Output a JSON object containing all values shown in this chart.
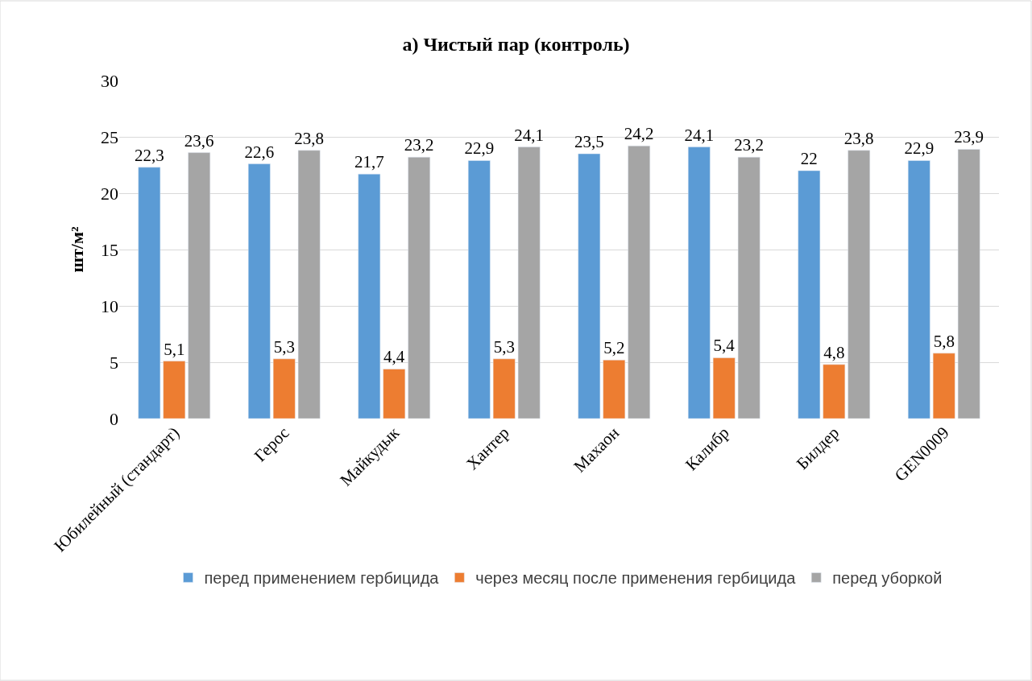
{
  "chart_data": {
    "type": "bar",
    "title": "а) Чистый пар (контроль)",
    "ylabel": "шт/м²",
    "categories": [
      "Юбилейный (стандарт)",
      "Герос",
      "Майкудык",
      "Хантер",
      "Махаон",
      "Калибр",
      "Билдер",
      "GEN0009"
    ],
    "series": [
      {
        "name": "перед применением гербицида",
        "color": "#5b9bd5",
        "values": [
          22.3,
          22.6,
          21.7,
          22.9,
          23.5,
          24.1,
          22,
          22.9
        ],
        "value_labels": [
          "22,3",
          "22,6",
          "21,7",
          "22,9",
          "23,5",
          "24,1",
          "22",
          "22,9"
        ]
      },
      {
        "name": "через месяц после применения гербицида",
        "color": "#ed7d31",
        "values": [
          5.1,
          5.3,
          4.4,
          5.3,
          5.2,
          5.4,
          4.8,
          5.8
        ],
        "value_labels": [
          "5,1",
          "5,3",
          "4,4",
          "5,3",
          "5,2",
          "5,4",
          "4,8",
          "5,8"
        ]
      },
      {
        "name": "перед уборкой",
        "color": "#a5a5a5",
        "values": [
          23.6,
          23.8,
          23.2,
          24.1,
          24.2,
          23.2,
          23.8,
          23.9
        ],
        "value_labels": [
          "23,6",
          "23,8",
          "23,2",
          "24,1",
          "24,2",
          "23,2",
          "23,8",
          "23,9"
        ]
      }
    ],
    "ylim": [
      0,
      30
    ],
    "yticks": [
      0,
      5,
      10,
      15,
      20,
      25,
      30
    ],
    "grid": "y",
    "legend": "bottom"
  }
}
